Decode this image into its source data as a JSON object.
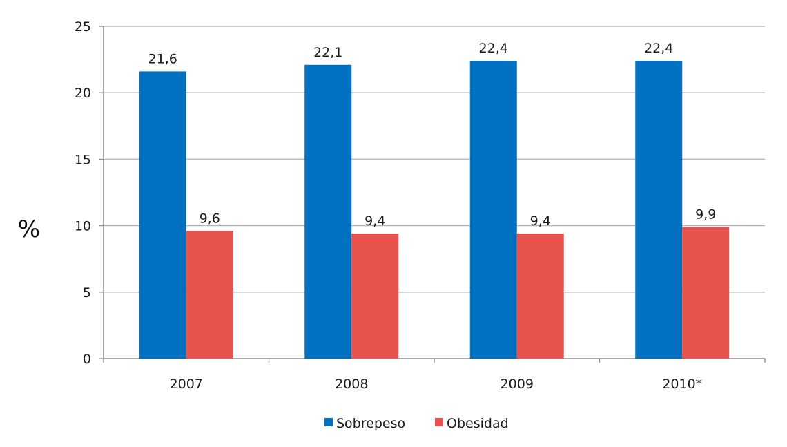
{
  "colors": {
    "sobrepeso": "#0070c0",
    "obesidad": "#e8534f",
    "grid": "#b3b3b3",
    "axis": "#8c8c8c"
  },
  "chart_data": {
    "type": "bar",
    "categories": [
      "2007",
      "2008",
      "2009",
      "2010*"
    ],
    "series": [
      {
        "name": "Sobrepeso",
        "values": [
          21.6,
          22.1,
          22.4,
          22.4
        ],
        "labels": [
          "21,6",
          "22,1",
          "22,4",
          "22,4"
        ]
      },
      {
        "name": "Obesidad",
        "values": [
          9.6,
          9.4,
          9.4,
          9.9
        ],
        "labels": [
          "9,6",
          "9,4",
          "9,4",
          "9,9"
        ]
      }
    ],
    "title": "",
    "xlabel": "",
    "ylabel": "%",
    "ylim": [
      0,
      25
    ],
    "yticks": [
      "0",
      "5",
      "10",
      "15",
      "20",
      "25"
    ],
    "grid": true,
    "legend": "bottom"
  }
}
